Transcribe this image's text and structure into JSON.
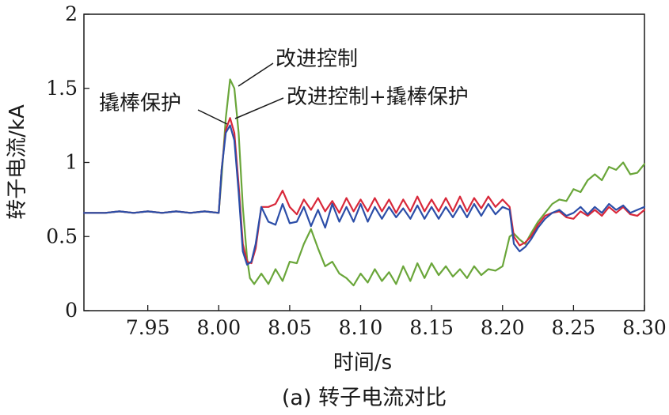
{
  "chart_data": {
    "type": "line",
    "title": "",
    "caption": "(a) 转子电流对比",
    "xlabel": "时间/s",
    "ylabel": "转子电流/kA",
    "xlim": [
      7.905,
      8.3
    ],
    "ylim": [
      0,
      2
    ],
    "x_ticks": [
      7.95,
      8.0,
      8.05,
      8.1,
      8.15,
      8.2,
      8.25,
      8.3
    ],
    "x_tick_labels": [
      "7.95",
      "8.00",
      "8.05",
      "8.10",
      "8.15",
      "8.20",
      "8.25",
      "8.30"
    ],
    "y_ticks": [
      0,
      0.5,
      1,
      1.5,
      2
    ],
    "y_tick_labels": [
      "0",
      "0.5",
      "1",
      "1.5",
      "2"
    ],
    "grid": false,
    "legend": "none",
    "annotations": [
      {
        "text": "改进控制",
        "series": "green"
      },
      {
        "text": "撬棒保护",
        "series": "blue"
      },
      {
        "text": "改进控制+撬棒保护",
        "series": "red"
      }
    ],
    "series": [
      {
        "color": "#6aa63a",
        "x": [
          7.905,
          7.92,
          7.93,
          7.94,
          7.95,
          7.96,
          7.97,
          7.98,
          7.99,
          8.0,
          8.002,
          8.005,
          8.008,
          8.011,
          8.014,
          8.017,
          8.02,
          8.022,
          8.025,
          8.03,
          8.035,
          8.04,
          8.045,
          8.05,
          8.055,
          8.06,
          8.065,
          8.07,
          8.075,
          8.08,
          8.085,
          8.09,
          8.095,
          8.1,
          8.105,
          8.11,
          8.115,
          8.12,
          8.125,
          8.13,
          8.135,
          8.14,
          8.145,
          8.15,
          8.155,
          8.16,
          8.165,
          8.17,
          8.175,
          8.18,
          8.185,
          8.19,
          8.195,
          8.2,
          8.205,
          8.208,
          8.212,
          8.216,
          8.22,
          8.225,
          8.23,
          8.235,
          8.24,
          8.245,
          8.25,
          8.255,
          8.26,
          8.265,
          8.27,
          8.275,
          8.28,
          8.285,
          8.29,
          8.295,
          8.3
        ],
        "values": [
          0.66,
          0.66,
          0.67,
          0.66,
          0.67,
          0.66,
          0.67,
          0.66,
          0.67,
          0.66,
          0.9,
          1.3,
          1.56,
          1.5,
          1.2,
          0.7,
          0.35,
          0.22,
          0.18,
          0.25,
          0.18,
          0.28,
          0.2,
          0.33,
          0.32,
          0.45,
          0.55,
          0.42,
          0.3,
          0.33,
          0.25,
          0.22,
          0.17,
          0.25,
          0.19,
          0.28,
          0.2,
          0.26,
          0.18,
          0.3,
          0.2,
          0.32,
          0.22,
          0.32,
          0.24,
          0.3,
          0.23,
          0.28,
          0.22,
          0.3,
          0.24,
          0.28,
          0.27,
          0.3,
          0.5,
          0.52,
          0.48,
          0.45,
          0.52,
          0.6,
          0.66,
          0.72,
          0.75,
          0.74,
          0.82,
          0.8,
          0.88,
          0.92,
          0.88,
          0.97,
          0.95,
          1.0,
          0.92,
          0.93,
          0.99
        ]
      },
      {
        "color": "#d8283a",
        "x": [
          7.905,
          7.92,
          7.93,
          7.94,
          7.95,
          7.96,
          7.97,
          7.98,
          7.99,
          8.0,
          8.002,
          8.005,
          8.008,
          8.011,
          8.014,
          8.017,
          8.02,
          8.023,
          8.026,
          8.03,
          8.035,
          8.04,
          8.045,
          8.05,
          8.055,
          8.06,
          8.065,
          8.07,
          8.075,
          8.08,
          8.085,
          8.09,
          8.095,
          8.1,
          8.105,
          8.11,
          8.115,
          8.12,
          8.125,
          8.13,
          8.135,
          8.14,
          8.145,
          8.15,
          8.155,
          8.16,
          8.165,
          8.17,
          8.175,
          8.18,
          8.185,
          8.19,
          8.195,
          8.2,
          8.205,
          8.208,
          8.212,
          8.216,
          8.22,
          8.225,
          8.23,
          8.235,
          8.24,
          8.245,
          8.25,
          8.255,
          8.26,
          8.265,
          8.27,
          8.275,
          8.28,
          8.285,
          8.29,
          8.295,
          8.3
        ],
        "values": [
          0.66,
          0.66,
          0.67,
          0.66,
          0.67,
          0.66,
          0.67,
          0.66,
          0.67,
          0.66,
          0.95,
          1.22,
          1.3,
          1.2,
          0.85,
          0.45,
          0.33,
          0.32,
          0.42,
          0.7,
          0.7,
          0.72,
          0.81,
          0.7,
          0.65,
          0.75,
          0.68,
          0.76,
          0.67,
          0.74,
          0.66,
          0.76,
          0.67,
          0.75,
          0.67,
          0.76,
          0.67,
          0.75,
          0.66,
          0.75,
          0.67,
          0.77,
          0.67,
          0.75,
          0.67,
          0.76,
          0.67,
          0.77,
          0.67,
          0.76,
          0.69,
          0.77,
          0.7,
          0.75,
          0.7,
          0.5,
          0.44,
          0.46,
          0.5,
          0.58,
          0.64,
          0.66,
          0.67,
          0.63,
          0.62,
          0.67,
          0.64,
          0.68,
          0.64,
          0.7,
          0.66,
          0.7,
          0.65,
          0.64,
          0.68
        ]
      },
      {
        "color": "#2c4ea8",
        "x": [
          7.905,
          7.92,
          7.93,
          7.94,
          7.95,
          7.96,
          7.97,
          7.98,
          7.99,
          8.0,
          8.002,
          8.005,
          8.008,
          8.011,
          8.014,
          8.017,
          8.02,
          8.023,
          8.026,
          8.03,
          8.035,
          8.04,
          8.045,
          8.05,
          8.055,
          8.06,
          8.065,
          8.07,
          8.075,
          8.08,
          8.085,
          8.09,
          8.095,
          8.1,
          8.105,
          8.11,
          8.115,
          8.12,
          8.125,
          8.13,
          8.135,
          8.14,
          8.145,
          8.15,
          8.155,
          8.16,
          8.165,
          8.17,
          8.175,
          8.18,
          8.185,
          8.19,
          8.195,
          8.2,
          8.205,
          8.208,
          8.212,
          8.216,
          8.22,
          8.225,
          8.23,
          8.235,
          8.24,
          8.245,
          8.25,
          8.255,
          8.26,
          8.265,
          8.27,
          8.275,
          8.28,
          8.285,
          8.29,
          8.295,
          8.3
        ],
        "values": [
          0.66,
          0.66,
          0.67,
          0.66,
          0.67,
          0.66,
          0.67,
          0.66,
          0.67,
          0.66,
          0.95,
          1.2,
          1.25,
          1.15,
          0.8,
          0.4,
          0.31,
          0.33,
          0.45,
          0.7,
          0.6,
          0.58,
          0.72,
          0.59,
          0.6,
          0.7,
          0.57,
          0.68,
          0.56,
          0.72,
          0.6,
          0.7,
          0.6,
          0.72,
          0.6,
          0.7,
          0.62,
          0.7,
          0.63,
          0.69,
          0.62,
          0.71,
          0.62,
          0.7,
          0.62,
          0.7,
          0.63,
          0.71,
          0.63,
          0.72,
          0.64,
          0.72,
          0.65,
          0.7,
          0.68,
          0.45,
          0.4,
          0.43,
          0.48,
          0.56,
          0.62,
          0.66,
          0.68,
          0.64,
          0.66,
          0.7,
          0.65,
          0.7,
          0.66,
          0.72,
          0.68,
          0.71,
          0.66,
          0.68,
          0.7
        ]
      }
    ]
  }
}
